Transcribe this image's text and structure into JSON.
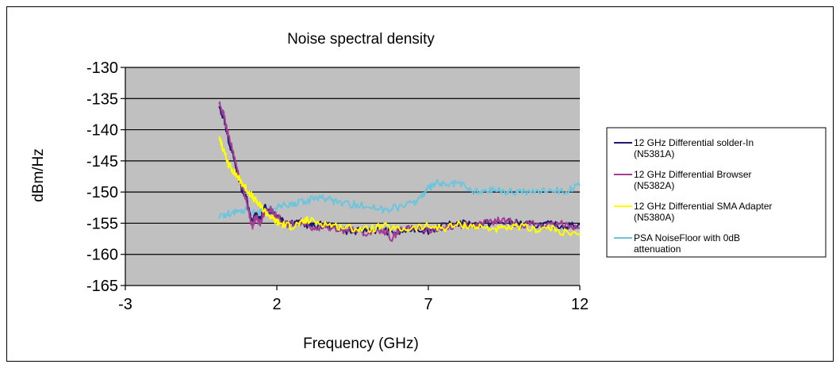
{
  "chart_data": {
    "type": "line",
    "title": "Noise spectral density",
    "xlabel": "Frequency (GHz)",
    "ylabel": "dBm/Hz",
    "xlim": [
      -3,
      12
    ],
    "ylim": [
      -165,
      -130
    ],
    "xticks": [
      -3,
      2,
      7,
      12
    ],
    "yticks": [
      -165,
      -160,
      -155,
      -150,
      -145,
      -140,
      -135,
      -130
    ],
    "grid": "horizontal",
    "plot_background": "#c0c0c0",
    "legend_position": "right",
    "series": [
      {
        "name": "12 GHz Differential solder-In (N5381A)",
        "color": "#1f1a6e",
        "points": [
          [
            0.1,
            -136.5
          ],
          [
            0.25,
            -138
          ],
          [
            0.4,
            -141.5
          ],
          [
            0.55,
            -144
          ],
          [
            0.7,
            -147
          ],
          [
            0.85,
            -149.5
          ],
          [
            1.0,
            -151
          ],
          [
            1.1,
            -153.5
          ],
          [
            1.2,
            -155
          ],
          [
            1.3,
            -153.5
          ],
          [
            1.45,
            -154.5
          ],
          [
            1.6,
            -152.5
          ],
          [
            1.8,
            -153
          ],
          [
            2.0,
            -153.5
          ],
          [
            2.2,
            -154.5
          ],
          [
            2.5,
            -154.8
          ],
          [
            2.8,
            -155
          ],
          [
            3.2,
            -155.5
          ],
          [
            3.6,
            -155.2
          ],
          [
            4.0,
            -155.8
          ],
          [
            4.5,
            -156.5
          ],
          [
            5.0,
            -156
          ],
          [
            5.5,
            -156.2
          ],
          [
            6.0,
            -156.5
          ],
          [
            6.5,
            -155.8
          ],
          [
            7.0,
            -156.2
          ],
          [
            7.5,
            -155.5
          ],
          [
            8.0,
            -155
          ],
          [
            8.5,
            -155.2
          ],
          [
            9.0,
            -155
          ],
          [
            9.5,
            -154.8
          ],
          [
            10.0,
            -155
          ],
          [
            10.5,
            -155.3
          ],
          [
            11.0,
            -155.2
          ],
          [
            11.5,
            -155.5
          ],
          [
            12.0,
            -155.2
          ]
        ]
      },
      {
        "name": "12 GHz Differential Browser (N5382A)",
        "color": "#a63d96",
        "points": [
          [
            0.1,
            -136
          ],
          [
            0.25,
            -137.5
          ],
          [
            0.4,
            -141
          ],
          [
            0.55,
            -143.5
          ],
          [
            0.7,
            -146.5
          ],
          [
            0.85,
            -149
          ],
          [
            1.0,
            -151.5
          ],
          [
            1.1,
            -154
          ],
          [
            1.2,
            -155.5
          ],
          [
            1.3,
            -154
          ],
          [
            1.45,
            -155
          ],
          [
            1.6,
            -153
          ],
          [
            1.8,
            -152.8
          ],
          [
            2.0,
            -153.8
          ],
          [
            2.2,
            -155
          ],
          [
            2.5,
            -155.2
          ],
          [
            2.8,
            -154.8
          ],
          [
            3.2,
            -155.8
          ],
          [
            3.6,
            -155.5
          ],
          [
            4.0,
            -156
          ],
          [
            4.5,
            -156.2
          ],
          [
            5.0,
            -156.5
          ],
          [
            5.5,
            -156
          ],
          [
            5.8,
            -157.5
          ],
          [
            6.0,
            -156.3
          ],
          [
            6.5,
            -155.5
          ],
          [
            7.0,
            -156
          ],
          [
            7.5,
            -155.8
          ],
          [
            8.0,
            -155.2
          ],
          [
            8.5,
            -155.5
          ],
          [
            9.0,
            -154.8
          ],
          [
            9.5,
            -154.5
          ],
          [
            10.0,
            -155.2
          ],
          [
            10.5,
            -155
          ],
          [
            11.0,
            -155.5
          ],
          [
            11.5,
            -155
          ],
          [
            12.0,
            -155.8
          ]
        ]
      },
      {
        "name": "12 GHz Differential SMA Adapter (N5380A)",
        "color": "#ffff00",
        "points": [
          [
            0.1,
            -141
          ],
          [
            0.25,
            -143.5
          ],
          [
            0.4,
            -145.5
          ],
          [
            0.55,
            -146.5
          ],
          [
            0.7,
            -147.5
          ],
          [
            0.85,
            -148.5
          ],
          [
            1.0,
            -149.5
          ],
          [
            1.2,
            -150.8
          ],
          [
            1.4,
            -152
          ],
          [
            1.6,
            -153
          ],
          [
            1.8,
            -154
          ],
          [
            2.0,
            -154.8
          ],
          [
            2.2,
            -155.2
          ],
          [
            2.5,
            -155.5
          ],
          [
            2.8,
            -155
          ],
          [
            3.0,
            -154.5
          ],
          [
            3.5,
            -155
          ],
          [
            4.0,
            -155.5
          ],
          [
            4.5,
            -155.8
          ],
          [
            5.0,
            -156
          ],
          [
            5.5,
            -155.5
          ],
          [
            6.0,
            -156
          ],
          [
            6.5,
            -155.8
          ],
          [
            7.0,
            -155.5
          ],
          [
            7.5,
            -155.8
          ],
          [
            8.0,
            -155.2
          ],
          [
            8.5,
            -155.5
          ],
          [
            9.0,
            -155.8
          ],
          [
            9.5,
            -156
          ],
          [
            10.0,
            -155.5
          ],
          [
            10.5,
            -156
          ],
          [
            11.0,
            -155.8
          ],
          [
            11.5,
            -156.5
          ],
          [
            12.0,
            -157
          ]
        ]
      },
      {
        "name": "PSA NoiseFloor with 0dB attenuation",
        "color": "#6cc5dc",
        "points": [
          [
            0.1,
            -154
          ],
          [
            0.4,
            -153.5
          ],
          [
            0.7,
            -153.2
          ],
          [
            1.0,
            -153
          ],
          [
            1.3,
            -153.5
          ],
          [
            1.6,
            -152.8
          ],
          [
            2.0,
            -152.5
          ],
          [
            2.3,
            -152.2
          ],
          [
            2.6,
            -151.8
          ],
          [
            3.0,
            -151.5
          ],
          [
            3.3,
            -150.8
          ],
          [
            3.6,
            -151.2
          ],
          [
            4.0,
            -151.5
          ],
          [
            4.5,
            -152
          ],
          [
            5.0,
            -152.2
          ],
          [
            5.5,
            -152.8
          ],
          [
            6.0,
            -152.5
          ],
          [
            6.5,
            -151.8
          ],
          [
            6.8,
            -150.5
          ],
          [
            7.0,
            -149.5
          ],
          [
            7.3,
            -148.5
          ],
          [
            7.6,
            -149
          ],
          [
            8.0,
            -148.5
          ],
          [
            8.4,
            -149.8
          ],
          [
            8.8,
            -150
          ],
          [
            9.2,
            -149.5
          ],
          [
            9.6,
            -150
          ],
          [
            10.0,
            -149.8
          ],
          [
            10.5,
            -150
          ],
          [
            11.0,
            -149.5
          ],
          [
            11.5,
            -149.8
          ],
          [
            12.0,
            -149
          ]
        ]
      }
    ]
  }
}
